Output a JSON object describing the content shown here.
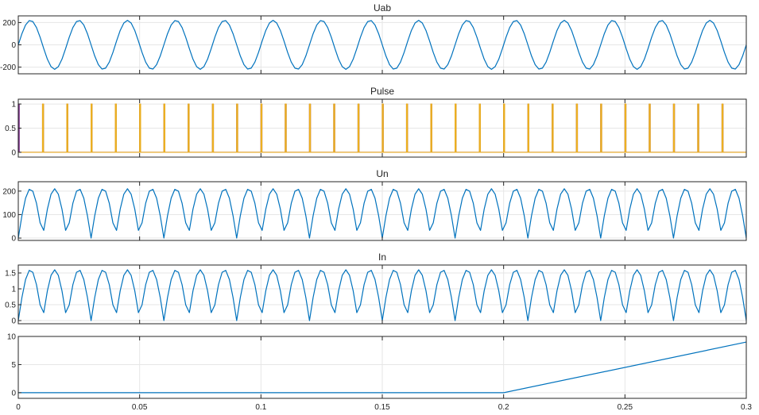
{
  "chart_data": {
    "type": "line",
    "x_range": [
      0,
      0.3
    ],
    "x_ticks": [
      0,
      0.05,
      0.1,
      0.15,
      0.2,
      0.25,
      0.3
    ],
    "x_tick_labels": [
      "0",
      "0.05",
      "0.1",
      "0.15",
      "0.2",
      "0.25",
      "0.3"
    ],
    "grid": true,
    "colors": {
      "blue": "#0072BD",
      "purple": "#7E2F8E",
      "orange": "#EDB120"
    },
    "panels": [
      {
        "title": "Uab",
        "ylim": [
          -260,
          260
        ],
        "y_ticks": [
          -200,
          0,
          200
        ],
        "y_tick_labels": [
          "-200",
          "0",
          "200"
        ],
        "series": [
          {
            "kind": "sine",
            "amplitude": 220,
            "frequency_hz": 50,
            "phase_deg": 0,
            "color": "blue"
          }
        ]
      },
      {
        "title": "Pulse",
        "ylim": [
          -0.1,
          1.1
        ],
        "y_ticks": [
          0,
          0.5,
          1
        ],
        "y_tick_labels": [
          "0",
          "0.5",
          "1"
        ],
        "series": [
          {
            "kind": "pulses",
            "first": 0,
            "period": 0.01,
            "width": 0.0004,
            "color": "purple"
          },
          {
            "kind": "pulses",
            "first": 0.01,
            "period": 0.01,
            "width": 0.0004,
            "color": "orange"
          }
        ]
      },
      {
        "title": "Un",
        "ylim": [
          -10,
          240
        ],
        "y_ticks": [
          0,
          100,
          200
        ],
        "y_tick_labels": [
          "0",
          "100",
          "200"
        ],
        "series": [
          {
            "kind": "abs_sine",
            "amplitude": 210,
            "frequency_hz": 50,
            "color": "blue"
          }
        ]
      },
      {
        "title": "In",
        "ylim": [
          -0.1,
          1.75
        ],
        "y_ticks": [
          0,
          0.5,
          1,
          1.5
        ],
        "y_tick_labels": [
          "0",
          "0.5",
          "1",
          "1.5"
        ],
        "series": [
          {
            "kind": "abs_sine",
            "amplitude": 1.6,
            "frequency_hz": 50,
            "color": "blue"
          }
        ]
      },
      {
        "title": "",
        "ylim": [
          -1,
          10
        ],
        "y_ticks": [
          0,
          5,
          10
        ],
        "y_tick_labels": [
          "0",
          "5",
          "10"
        ],
        "series": [
          {
            "kind": "polyline",
            "x": [
              0,
              0.2,
              0.3
            ],
            "y": [
              0,
              0,
              9
            ],
            "color": "blue"
          }
        ]
      }
    ]
  }
}
